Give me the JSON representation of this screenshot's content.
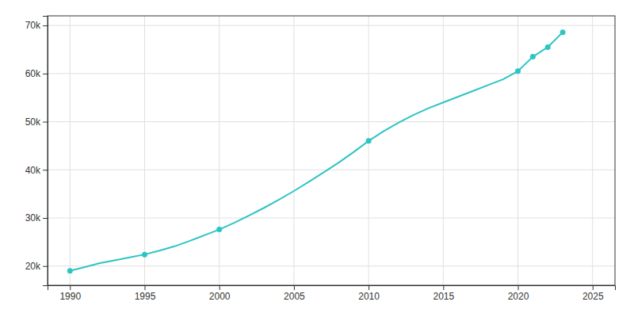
{
  "chart_data": {
    "type": "line",
    "series": [
      {
        "type": "line",
        "x": [
          1990,
          1991,
          1992,
          1993,
          1994,
          1995,
          1996,
          1997,
          1998,
          1999,
          2000,
          2001,
          2002,
          2003,
          2004,
          2005,
          2006,
          2007,
          2008,
          2009,
          2010,
          2011,
          2012,
          2013,
          2014,
          2015,
          2016,
          2017,
          2018,
          2019,
          2020,
          2021,
          2022,
          2023
        ],
        "values": [
          19000,
          19800,
          20600,
          21200,
          21800,
          22400,
          23200,
          24100,
          25200,
          26400,
          27600,
          29000,
          30500,
          32100,
          33800,
          35600,
          37500,
          39500,
          41500,
          43700,
          46000,
          48000,
          49800,
          51400,
          52800,
          54000,
          55200,
          56400,
          57600,
          58800,
          60500,
          63500,
          65500,
          68600
        ],
        "color": "#2EC4C4"
      },
      {
        "type": "scatter",
        "x": [
          1990,
          1995,
          2000,
          2010,
          2020,
          2021,
          2022,
          2023
        ],
        "values": [
          19000,
          22400,
          27600,
          46000,
          60500,
          63500,
          65500,
          68600
        ],
        "color": "#2EC4C4",
        "marker": "circle"
      }
    ],
    "xlim": [
      1988.5,
      2026.5
    ],
    "ylim": [
      16000,
      72000
    ],
    "xticks": [
      1990,
      1995,
      2000,
      2005,
      2010,
      2015,
      2020,
      2025
    ],
    "yticks": [
      {
        "value": 20000,
        "label": "20k"
      },
      {
        "value": 30000,
        "label": "30k"
      },
      {
        "value": 40000,
        "label": "40k"
      },
      {
        "value": 50000,
        "label": "50k"
      },
      {
        "value": 60000,
        "label": "60k"
      },
      {
        "value": 70000,
        "label": "70k"
      }
    ],
    "grid": true
  }
}
